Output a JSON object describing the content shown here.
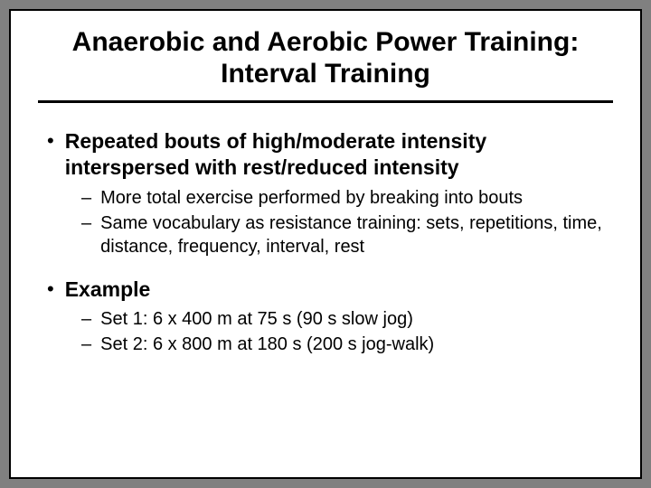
{
  "slide": {
    "title": "Anaerobic and Aerobic Power Training: Interval Training",
    "title_fontsize": 30,
    "title_color": "#000000",
    "rule_color": "#000000",
    "rule_thickness": 3,
    "background_color": "#ffffff",
    "border_color": "#000000",
    "outer_background": "#808080",
    "bullets": [
      {
        "text": "Repeated bouts of high/moderate intensity interspersed with rest/reduced intensity",
        "subs": [
          "More total exercise performed by breaking into bouts",
          "Same vocabulary as resistance training: sets, repetitions, time, distance, frequency, interval, rest"
        ]
      },
      {
        "text": "Example",
        "subs": [
          "Set 1: 6 x 400 m at 75 s (90 s slow jog)",
          "Set 2: 6 x 800 m at 180 s (200 s jog-walk)"
        ]
      }
    ],
    "bullet_fontsize": 23,
    "bullet_fontweight": "bold",
    "sub_fontsize": 20,
    "sub_fontweight": "normal",
    "text_color": "#000000"
  }
}
